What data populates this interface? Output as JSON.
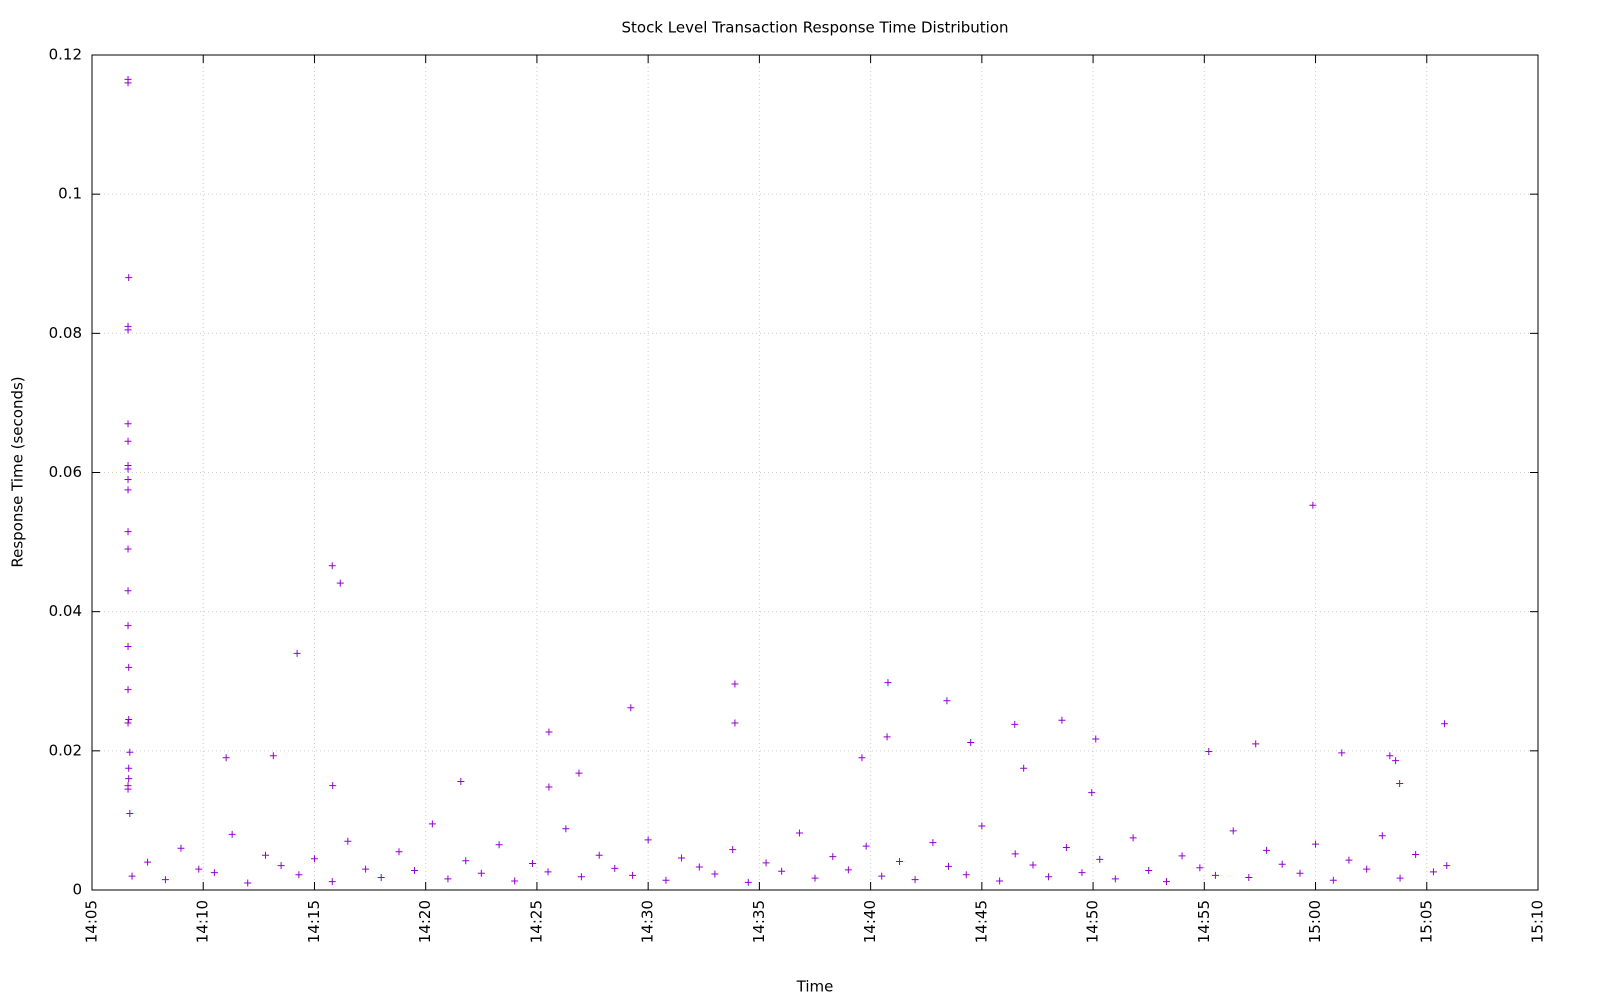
{
  "chart_data": {
    "type": "scatter",
    "title": "Stock Level Transaction Response Time Distribution",
    "x_label": "Time",
    "y_label": "Response Time (seconds)",
    "color": "#9400d3",
    "grid": true,
    "xlim": [
      845,
      910
    ],
    "ylim": [
      0,
      0.12
    ],
    "xticks": [
      {
        "value": 845,
        "label": "14:05"
      },
      {
        "value": 850,
        "label": "14:10"
      },
      {
        "value": 855,
        "label": "14:15"
      },
      {
        "value": 860,
        "label": "14:20"
      },
      {
        "value": 865,
        "label": "14:25"
      },
      {
        "value": 870,
        "label": "14:30"
      },
      {
        "value": 875,
        "label": "14:35"
      },
      {
        "value": 880,
        "label": "14:40"
      },
      {
        "value": 885,
        "label": "14:45"
      },
      {
        "value": 890,
        "label": "14:50"
      },
      {
        "value": 895,
        "label": "14:55"
      },
      {
        "value": 900,
        "label": "15:00"
      },
      {
        "value": 905,
        "label": "15:05"
      },
      {
        "value": 910,
        "label": "15:10"
      }
    ],
    "yticks": [
      0,
      0.02,
      0.04,
      0.06,
      0.08,
      0.1,
      0.12
    ],
    "x": [
      846.62,
      846.62,
      846.65,
      846.62,
      846.62,
      846.62,
      846.62,
      846.62,
      846.62,
      846.62,
      846.62,
      846.62,
      846.62,
      846.62,
      846.62,
      846.62,
      846.65,
      846.62,
      846.65,
      846.62,
      846.7,
      846.65,
      846.65,
      846.62,
      846.62,
      846.7,
      851.03,
      853.15,
      854.22,
      855.8,
      856.16,
      855.82,
      861.58,
      865.54,
      865.54,
      866.89,
      869.22,
      873.9,
      873.9,
      879.61,
      880.78,
      880.74,
      883.43,
      884.5,
      886.48,
      886.88,
      888.6,
      890.12,
      895.2,
      897.31,
      899.88,
      901.18,
      903.34,
      903.6,
      905.8,
      889.94,
      903.78,
      846.8,
      847.5,
      848.3,
      849.0,
      849.8,
      850.5,
      851.3,
      852.0,
      852.8,
      853.5,
      854.3,
      855.0,
      855.8,
      856.5,
      857.3,
      858.0,
      858.8,
      859.5,
      860.3,
      861.0,
      861.8,
      862.5,
      863.3,
      864.0,
      864.8,
      865.5,
      866.3,
      867.0,
      867.8,
      868.5,
      869.3,
      870.0,
      870.8,
      871.5,
      872.3,
      873.0,
      873.8,
      874.5,
      875.3,
      876.0,
      876.8,
      877.5,
      878.3,
      879.0,
      879.8,
      880.5,
      881.3,
      882.0,
      882.8,
      883.5,
      884.3,
      885.0,
      885.8,
      886.5,
      887.3,
      888.0,
      888.8,
      889.5,
      890.3,
      891.0,
      891.8,
      892.5,
      893.3,
      894.0,
      894.8,
      895.5,
      896.3,
      897.0,
      897.8,
      898.5,
      899.3,
      900.0,
      900.8,
      901.5,
      902.3,
      903.0,
      903.8,
      904.5,
      905.3,
      905.9
    ],
    "values": [
      0.116,
      0.1165,
      0.088,
      0.081,
      0.0805,
      0.067,
      0.0645,
      0.061,
      0.0605,
      0.059,
      0.0575,
      0.0515,
      0.049,
      0.043,
      0.038,
      0.035,
      0.032,
      0.0288,
      0.0245,
      0.024,
      0.0198,
      0.0175,
      0.016,
      0.015,
      0.0145,
      0.011,
      0.019,
      0.0193,
      0.034,
      0.0466,
      0.0441,
      0.015,
      0.0156,
      0.0227,
      0.0148,
      0.0168,
      0.0262,
      0.0296,
      0.024,
      0.019,
      0.0298,
      0.022,
      0.0272,
      0.0212,
      0.0238,
      0.0175,
      0.0244,
      0.0217,
      0.0199,
      0.021,
      0.0553,
      0.0197,
      0.0193,
      0.0186,
      0.0239,
      0.014,
      0.0153,
      0.002,
      0.004,
      0.0015,
      0.006,
      0.003,
      0.0025,
      0.008,
      0.001,
      0.005,
      0.0035,
      0.0022,
      0.0045,
      0.0012,
      0.007,
      0.003,
      0.0018,
      0.0055,
      0.0028,
      0.0095,
      0.0016,
      0.0042,
      0.0024,
      0.0065,
      0.0013,
      0.0038,
      0.0026,
      0.0088,
      0.0019,
      0.005,
      0.0031,
      0.0021,
      0.0072,
      0.0014,
      0.0046,
      0.0033,
      0.0023,
      0.0058,
      0.0011,
      0.0039,
      0.0027,
      0.0082,
      0.0017,
      0.0048,
      0.0029,
      0.0063,
      0.002,
      0.0041,
      0.0015,
      0.0068,
      0.0034,
      0.0022,
      0.0092,
      0.0013,
      0.0052,
      0.0036,
      0.0019,
      0.0061,
      0.0025,
      0.0044,
      0.0016,
      0.0075,
      0.0028,
      0.0012,
      0.0049,
      0.0032,
      0.0021,
      0.0085,
      0.0018,
      0.0057,
      0.0037,
      0.0024,
      0.0066,
      0.0014,
      0.0043,
      0.003,
      0.0078,
      0.0017,
      0.0051,
      0.0026,
      0.0035
    ]
  }
}
